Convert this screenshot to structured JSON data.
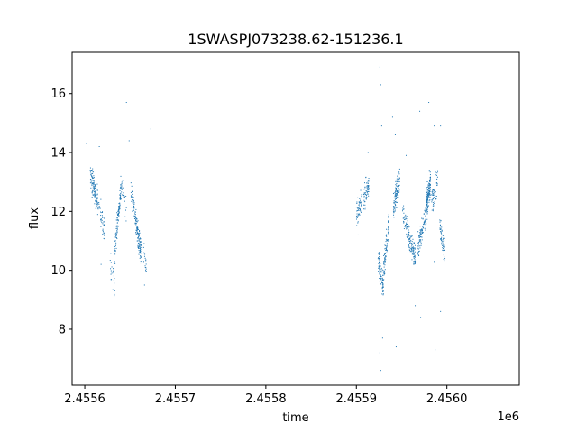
{
  "chart_data": {
    "type": "scatter",
    "title": "1SWASPJ073238.62-151236.1",
    "xlabel": "time",
    "ylabel": "flux",
    "x_offset_label": "1e6",
    "xlim": [
      2455546,
      2456040
    ],
    "ylim": [
      6.1,
      17.4
    ],
    "grid": false,
    "legend": "none",
    "point_color": "#1f77b4",
    "xticks": [
      {
        "value": 2455560,
        "label": "2.4556"
      },
      {
        "value": 2455660,
        "label": "2.4557"
      },
      {
        "value": 2455760,
        "label": "2.4558"
      },
      {
        "value": 2455860,
        "label": "2.4559"
      },
      {
        "value": 2455960,
        "label": "2.4560"
      }
    ],
    "yticks": [
      {
        "value": 8,
        "label": "8"
      },
      {
        "value": 10,
        "label": "10"
      },
      {
        "value": 12,
        "label": "12"
      },
      {
        "value": 14,
        "label": "14"
      },
      {
        "value": 16,
        "label": "16"
      }
    ],
    "clusters": [
      {
        "x_start": 2455566,
        "x_end": 2455574,
        "y_start": 13.2,
        "y_end": 12.4,
        "n": 110
      },
      {
        "x_start": 2455574,
        "x_end": 2455582,
        "y_start": 12.4,
        "y_end": 11.3,
        "n": 50
      },
      {
        "x_start": 2455588,
        "x_end": 2455593,
        "y_start": 10.2,
        "y_end": 9.6,
        "n": 20
      },
      {
        "x_start": 2455593,
        "x_end": 2455600,
        "y_start": 10.6,
        "y_end": 12.8,
        "n": 110
      },
      {
        "x_start": 2455600,
        "x_end": 2455606,
        "y_start": 12.9,
        "y_end": 12.2,
        "n": 25
      },
      {
        "x_start": 2455611,
        "x_end": 2455616,
        "y_start": 12.6,
        "y_end": 11.9,
        "n": 40
      },
      {
        "x_start": 2455616,
        "x_end": 2455622,
        "y_start": 11.7,
        "y_end": 10.6,
        "n": 110
      },
      {
        "x_start": 2455622,
        "x_end": 2455628,
        "y_start": 10.8,
        "y_end": 10.2,
        "n": 20
      },
      {
        "x_start": 2455860,
        "x_end": 2455866,
        "y_start": 11.8,
        "y_end": 12.3,
        "n": 55
      },
      {
        "x_start": 2455868,
        "x_end": 2455874,
        "y_start": 12.4,
        "y_end": 12.9,
        "n": 65
      },
      {
        "x_start": 2455884,
        "x_end": 2455890,
        "y_start": 10.3,
        "y_end": 9.5,
        "n": 90
      },
      {
        "x_start": 2455890,
        "x_end": 2455896,
        "y_start": 9.9,
        "y_end": 11.7,
        "n": 80
      },
      {
        "x_start": 2455901,
        "x_end": 2455908,
        "y_start": 12.2,
        "y_end": 13.1,
        "n": 110
      },
      {
        "x_start": 2455911,
        "x_end": 2455917,
        "y_start": 12.0,
        "y_end": 11.3,
        "n": 40
      },
      {
        "x_start": 2455917,
        "x_end": 2455925,
        "y_start": 11.2,
        "y_end": 10.5,
        "n": 110
      },
      {
        "x_start": 2455928,
        "x_end": 2455937,
        "y_start": 10.8,
        "y_end": 11.9,
        "n": 90
      },
      {
        "x_start": 2455937,
        "x_end": 2455942,
        "y_start": 12.1,
        "y_end": 13.0,
        "n": 150
      },
      {
        "x_start": 2455943,
        "x_end": 2455950,
        "y_start": 12.4,
        "y_end": 13.0,
        "n": 60
      },
      {
        "x_start": 2455952,
        "x_end": 2455958,
        "y_start": 11.5,
        "y_end": 10.7,
        "n": 60
      }
    ],
    "outliers": [
      {
        "x": 2455562,
        "y": 14.3
      },
      {
        "x": 2455576,
        "y": 14.2
      },
      {
        "x": 2455578,
        "y": 10.2
      },
      {
        "x": 2455606,
        "y": 15.7
      },
      {
        "x": 2455609,
        "y": 14.4
      },
      {
        "x": 2455593,
        "y": 9.3
      },
      {
        "x": 2455633,
        "y": 14.8
      },
      {
        "x": 2455626,
        "y": 9.5
      },
      {
        "x": 2455886,
        "y": 16.9
      },
      {
        "x": 2455887,
        "y": 16.3
      },
      {
        "x": 2455888,
        "y": 14.9
      },
      {
        "x": 2455886,
        "y": 7.2
      },
      {
        "x": 2455887,
        "y": 6.6
      },
      {
        "x": 2455889,
        "y": 7.7
      },
      {
        "x": 2455900,
        "y": 15.2
      },
      {
        "x": 2455903,
        "y": 14.6
      },
      {
        "x": 2455904,
        "y": 7.4
      },
      {
        "x": 2455925,
        "y": 8.8
      },
      {
        "x": 2455930,
        "y": 15.4
      },
      {
        "x": 2455931,
        "y": 8.4
      },
      {
        "x": 2455940,
        "y": 15.7
      },
      {
        "x": 2455946,
        "y": 14.9
      },
      {
        "x": 2455953,
        "y": 14.9
      },
      {
        "x": 2455953,
        "y": 8.6
      },
      {
        "x": 2455947,
        "y": 7.3
      },
      {
        "x": 2455873,
        "y": 14.0
      },
      {
        "x": 2455862,
        "y": 11.2
      },
      {
        "x": 2455915,
        "y": 13.9
      },
      {
        "x": 2455946,
        "y": 10.3
      }
    ]
  }
}
